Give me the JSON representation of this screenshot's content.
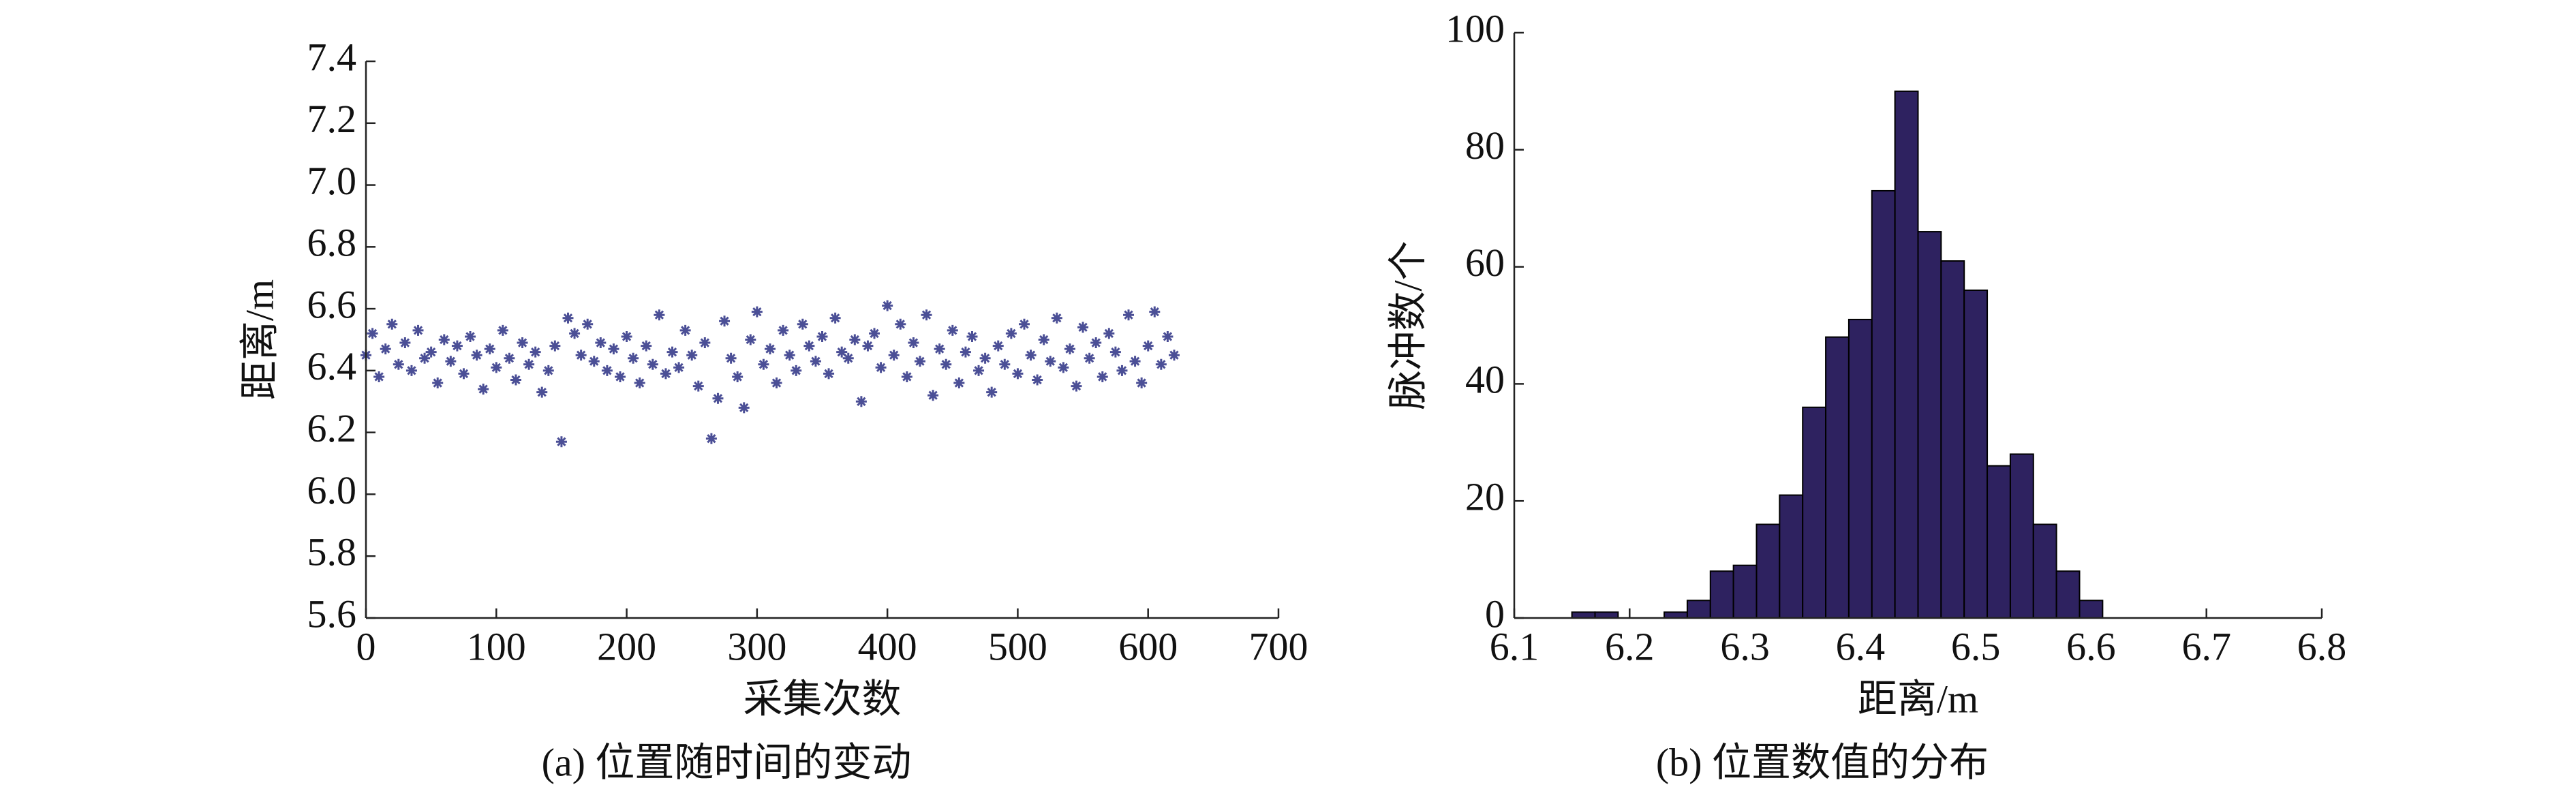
{
  "chart_data": [
    {
      "type": "scatter",
      "caption": "(a) 位置随时间的变动",
      "xlabel": "采集次数",
      "ylabel": "距离/m",
      "color": "#4b4f96",
      "xlim": [
        0,
        700
      ],
      "xticks": [
        0,
        100,
        200,
        300,
        400,
        500,
        600,
        700
      ],
      "ylim": [
        5.6,
        7.4
      ],
      "yticks": [
        5.6,
        5.8,
        {
          "value": 6,
          "label": "6.0"
        },
        6.2,
        6.4,
        6.6,
        6.8,
        {
          "value": 7,
          "label": "7.0"
        },
        7.2,
        7.4
      ],
      "x": [
        0,
        5,
        10,
        15,
        20,
        25,
        30,
        35,
        40,
        45,
        50,
        55,
        60,
        65,
        70,
        75,
        80,
        85,
        90,
        95,
        100,
        105,
        110,
        115,
        120,
        125,
        130,
        135,
        140,
        145,
        150,
        155,
        160,
        165,
        170,
        175,
        180,
        185,
        190,
        195,
        200,
        205,
        210,
        215,
        220,
        225,
        230,
        235,
        240,
        245,
        250,
        255,
        260,
        265,
        270,
        275,
        280,
        285,
        290,
        295,
        300,
        305,
        310,
        315,
        320,
        325,
        330,
        335,
        340,
        345,
        350,
        355,
        360,
        365,
        370,
        375,
        380,
        385,
        390,
        395,
        400,
        405,
        410,
        415,
        420,
        425,
        430,
        435,
        440,
        445,
        450,
        455,
        460,
        465,
        470,
        475,
        480,
        485,
        490,
        495,
        500,
        505,
        510,
        515,
        520,
        525,
        530,
        535,
        540,
        545,
        550,
        555,
        560,
        565,
        570,
        575,
        580,
        585,
        590,
        595,
        600,
        605,
        610,
        615,
        620
      ],
      "values": [
        6.45,
        6.52,
        6.38,
        6.47,
        6.55,
        6.42,
        6.49,
        6.4,
        6.53,
        6.44,
        6.46,
        6.36,
        6.5,
        6.43,
        6.48,
        6.39,
        6.51,
        6.45,
        6.34,
        6.47,
        6.41,
        6.53,
        6.44,
        6.37,
        6.49,
        6.42,
        6.46,
        6.33,
        6.4,
        6.48,
        6.17,
        6.57,
        6.52,
        6.45,
        6.55,
        6.43,
        6.49,
        6.4,
        6.47,
        6.38,
        6.51,
        6.44,
        6.36,
        6.48,
        6.42,
        6.58,
        6.39,
        6.46,
        6.41,
        6.53,
        6.45,
        6.35,
        6.49,
        6.18,
        6.31,
        6.56,
        6.44,
        6.38,
        6.28,
        6.5,
        6.59,
        6.42,
        6.47,
        6.36,
        6.53,
        6.45,
        6.4,
        6.55,
        6.48,
        6.43,
        6.51,
        6.39,
        6.57,
        6.46,
        6.44,
        6.5,
        6.3,
        6.48,
        6.52,
        6.41,
        6.61,
        6.45,
        6.55,
        6.38,
        6.49,
        6.43,
        6.58,
        6.32,
        6.47,
        6.42,
        6.53,
        6.36,
        6.46,
        6.51,
        6.4,
        6.44,
        6.33,
        6.48,
        6.42,
        6.52,
        6.39,
        6.55,
        6.45,
        6.37,
        6.5,
        6.43,
        6.57,
        6.41,
        6.47,
        6.35,
        6.54,
        6.44,
        6.49,
        6.38,
        6.52,
        6.46,
        6.4,
        6.58,
        6.43,
        6.36,
        6.48,
        6.59,
        6.42,
        6.51,
        6.45
      ]
    },
    {
      "type": "histogram",
      "caption": "(b) 位置数值的分布",
      "xlabel": "距离/m",
      "ylabel": "脉冲数/个",
      "color": "#2e2260",
      "xlim": [
        6.1,
        6.8
      ],
      "xticks": [
        6.1,
        6.2,
        6.3,
        6.4,
        6.5,
        6.6,
        6.7,
        6.8
      ],
      "ylim": [
        0,
        100
      ],
      "yticks": [
        0,
        20,
        40,
        60,
        80,
        100
      ],
      "bins": [
        6.15,
        6.17,
        6.19,
        6.21,
        6.23,
        6.25,
        6.27,
        6.29,
        6.31,
        6.33,
        6.35,
        6.37,
        6.39,
        6.41,
        6.43,
        6.45,
        6.47,
        6.49,
        6.51,
        6.53,
        6.55,
        6.57,
        6.59,
        6.61
      ],
      "values": [
        1,
        1,
        0,
        0,
        1,
        3,
        8,
        9,
        16,
        21,
        36,
        48,
        51,
        73,
        90,
        66,
        61,
        56,
        26,
        28,
        16,
        8,
        3
      ]
    }
  ]
}
